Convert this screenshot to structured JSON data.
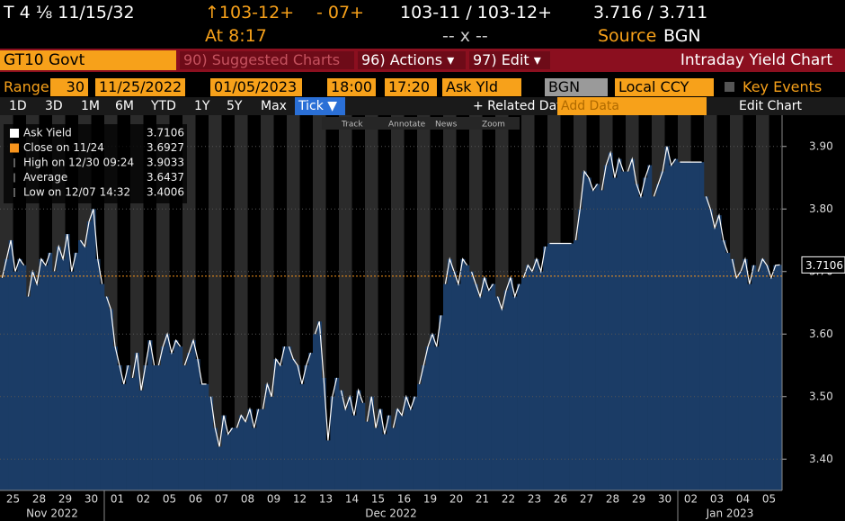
{
  "header": {
    "security": "T 4 ⅛ 11/15/32",
    "price": "↑103-12+",
    "change": "- 07+",
    "bid_ask": "103-11 / 103-12+",
    "yields": "3.716 / 3.711",
    "time": "At 8:17",
    "size": "-- x --",
    "source_label": "Source",
    "source_value": "BGN"
  },
  "toolbar": {
    "ticker": "GT10 Govt",
    "suggested": "90) Suggested Charts",
    "actions": "96) Actions ▾",
    "edit": "97) Edit ▾",
    "title": "Intraday Yield Chart"
  },
  "settings": {
    "range_label": "Range",
    "range": "30",
    "start": "11/25/2022",
    "end": "01/05/2023",
    "time_start": "18:00",
    "time_end": "17:20",
    "field": "Ask Yld",
    "source": "BGN",
    "currency": "Local CCY",
    "key_events": "Key Events"
  },
  "periods": [
    "1D",
    "3D",
    "1M",
    "6M",
    "YTD",
    "1Y",
    "5Y",
    "Max",
    "Tick ▼"
  ],
  "related": "+ Related Data",
  "add_data": "Add Data",
  "edit_chart": "Edit Chart",
  "chart_tools": [
    "Track",
    "Annotate",
    "News",
    "Zoom"
  ],
  "chart_data": {
    "type": "area",
    "color": "#1b3c66",
    "line_color": "#ffffff",
    "legend": [
      {
        "label": "Ask Yield",
        "value": 3.7106,
        "color": "#ffffff"
      },
      {
        "label": "Close on 11/24",
        "value": 3.6927,
        "color": "#f7941d"
      },
      {
        "label": "High on 12/30 09:24",
        "value": 3.9033
      },
      {
        "label": "Average",
        "value": 3.6437
      },
      {
        "label": "Low on 12/07 14:32",
        "value": 3.4006
      }
    ],
    "categories": [
      "25",
      "28",
      "29",
      "30",
      "01",
      "02",
      "05",
      "06",
      "07",
      "08",
      "09",
      "12",
      "13",
      "14",
      "15",
      "16",
      "19",
      "20",
      "21",
      "22",
      "23",
      "26",
      "27",
      "28",
      "29",
      "30",
      "02",
      "03",
      "04",
      "05"
    ],
    "x_groups": [
      "Nov 2022",
      "Dec 2022",
      "Jan 2023"
    ],
    "values": [
      [
        3.69,
        3.72,
        3.75,
        3.7,
        3.72,
        3.71
      ],
      [
        3.66,
        3.7,
        3.68,
        3.72,
        3.71,
        3.73
      ],
      [
        3.7,
        3.74,
        3.72,
        3.76,
        3.7,
        3.73
      ],
      [
        3.75,
        3.74,
        3.78,
        3.8,
        3.72,
        3.68
      ],
      [
        3.66,
        3.64,
        3.58,
        3.55,
        3.52,
        3.55
      ],
      [
        3.53,
        3.57,
        3.51,
        3.55,
        3.59,
        3.55
      ],
      [
        3.55,
        3.58,
        3.6,
        3.57,
        3.59,
        3.58
      ],
      [
        3.55,
        3.57,
        3.59,
        3.56,
        3.52,
        3.52
      ],
      [
        3.5,
        3.45,
        3.42,
        3.47,
        3.44,
        3.45
      ],
      [
        3.45,
        3.47,
        3.46,
        3.48,
        3.45,
        3.48
      ],
      [
        3.48,
        3.52,
        3.5,
        3.56,
        3.55,
        3.58
      ],
      [
        3.58,
        3.56,
        3.55,
        3.52,
        3.55,
        3.57
      ],
      [
        3.6,
        3.62,
        3.53,
        3.43,
        3.5,
        3.53
      ],
      [
        3.51,
        3.48,
        3.5,
        3.47,
        3.51,
        3.49
      ],
      [
        3.46,
        3.5,
        3.45,
        3.48,
        3.44,
        3.47
      ],
      [
        3.45,
        3.48,
        3.47,
        3.5,
        3.48,
        3.5
      ],
      [
        3.52,
        3.55,
        3.58,
        3.6,
        3.58,
        3.63
      ],
      [
        3.68,
        3.72,
        3.7,
        3.68,
        3.72,
        3.71
      ],
      [
        3.7,
        3.68,
        3.66,
        3.69,
        3.67,
        3.68
      ],
      [
        3.66,
        3.64,
        3.67,
        3.69,
        3.66,
        3.68
      ],
      [
        3.69,
        3.71,
        3.7,
        3.72,
        3.7,
        3.74
      ],
      [
        3.745,
        3.745,
        3.745,
        3.745,
        3.745,
        3.745
      ],
      [
        3.75,
        3.8,
        3.86,
        3.85,
        3.83,
        3.84
      ],
      [
        3.83,
        3.87,
        3.89,
        3.85,
        3.88,
        3.86
      ],
      [
        3.86,
        3.88,
        3.84,
        3.82,
        3.85,
        3.87
      ],
      [
        3.82,
        3.84,
        3.86,
        3.9,
        3.87,
        3.88
      ],
      [
        3.875,
        3.875,
        3.875,
        3.875,
        3.875,
        3.875
      ],
      [
        3.82,
        3.8,
        3.77,
        3.79,
        3.75,
        3.73
      ],
      [
        3.72,
        3.69,
        3.7,
        3.72,
        3.68,
        3.71
      ],
      [
        3.7,
        3.72,
        3.71,
        3.69,
        3.71,
        3.7106
      ]
    ],
    "ylim": [
      3.35,
      3.95
    ],
    "yticks": [
      {
        "value": 3.4,
        "label": "3.40"
      },
      {
        "value": 3.5,
        "label": "3.50"
      },
      {
        "value": 3.6,
        "label": "3.60"
      },
      {
        "value": 3.7,
        "label": "3.70"
      },
      {
        "value": 3.8,
        "label": "3.80"
      },
      {
        "value": 3.9,
        "label": "3.90"
      }
    ],
    "grid": true
  }
}
